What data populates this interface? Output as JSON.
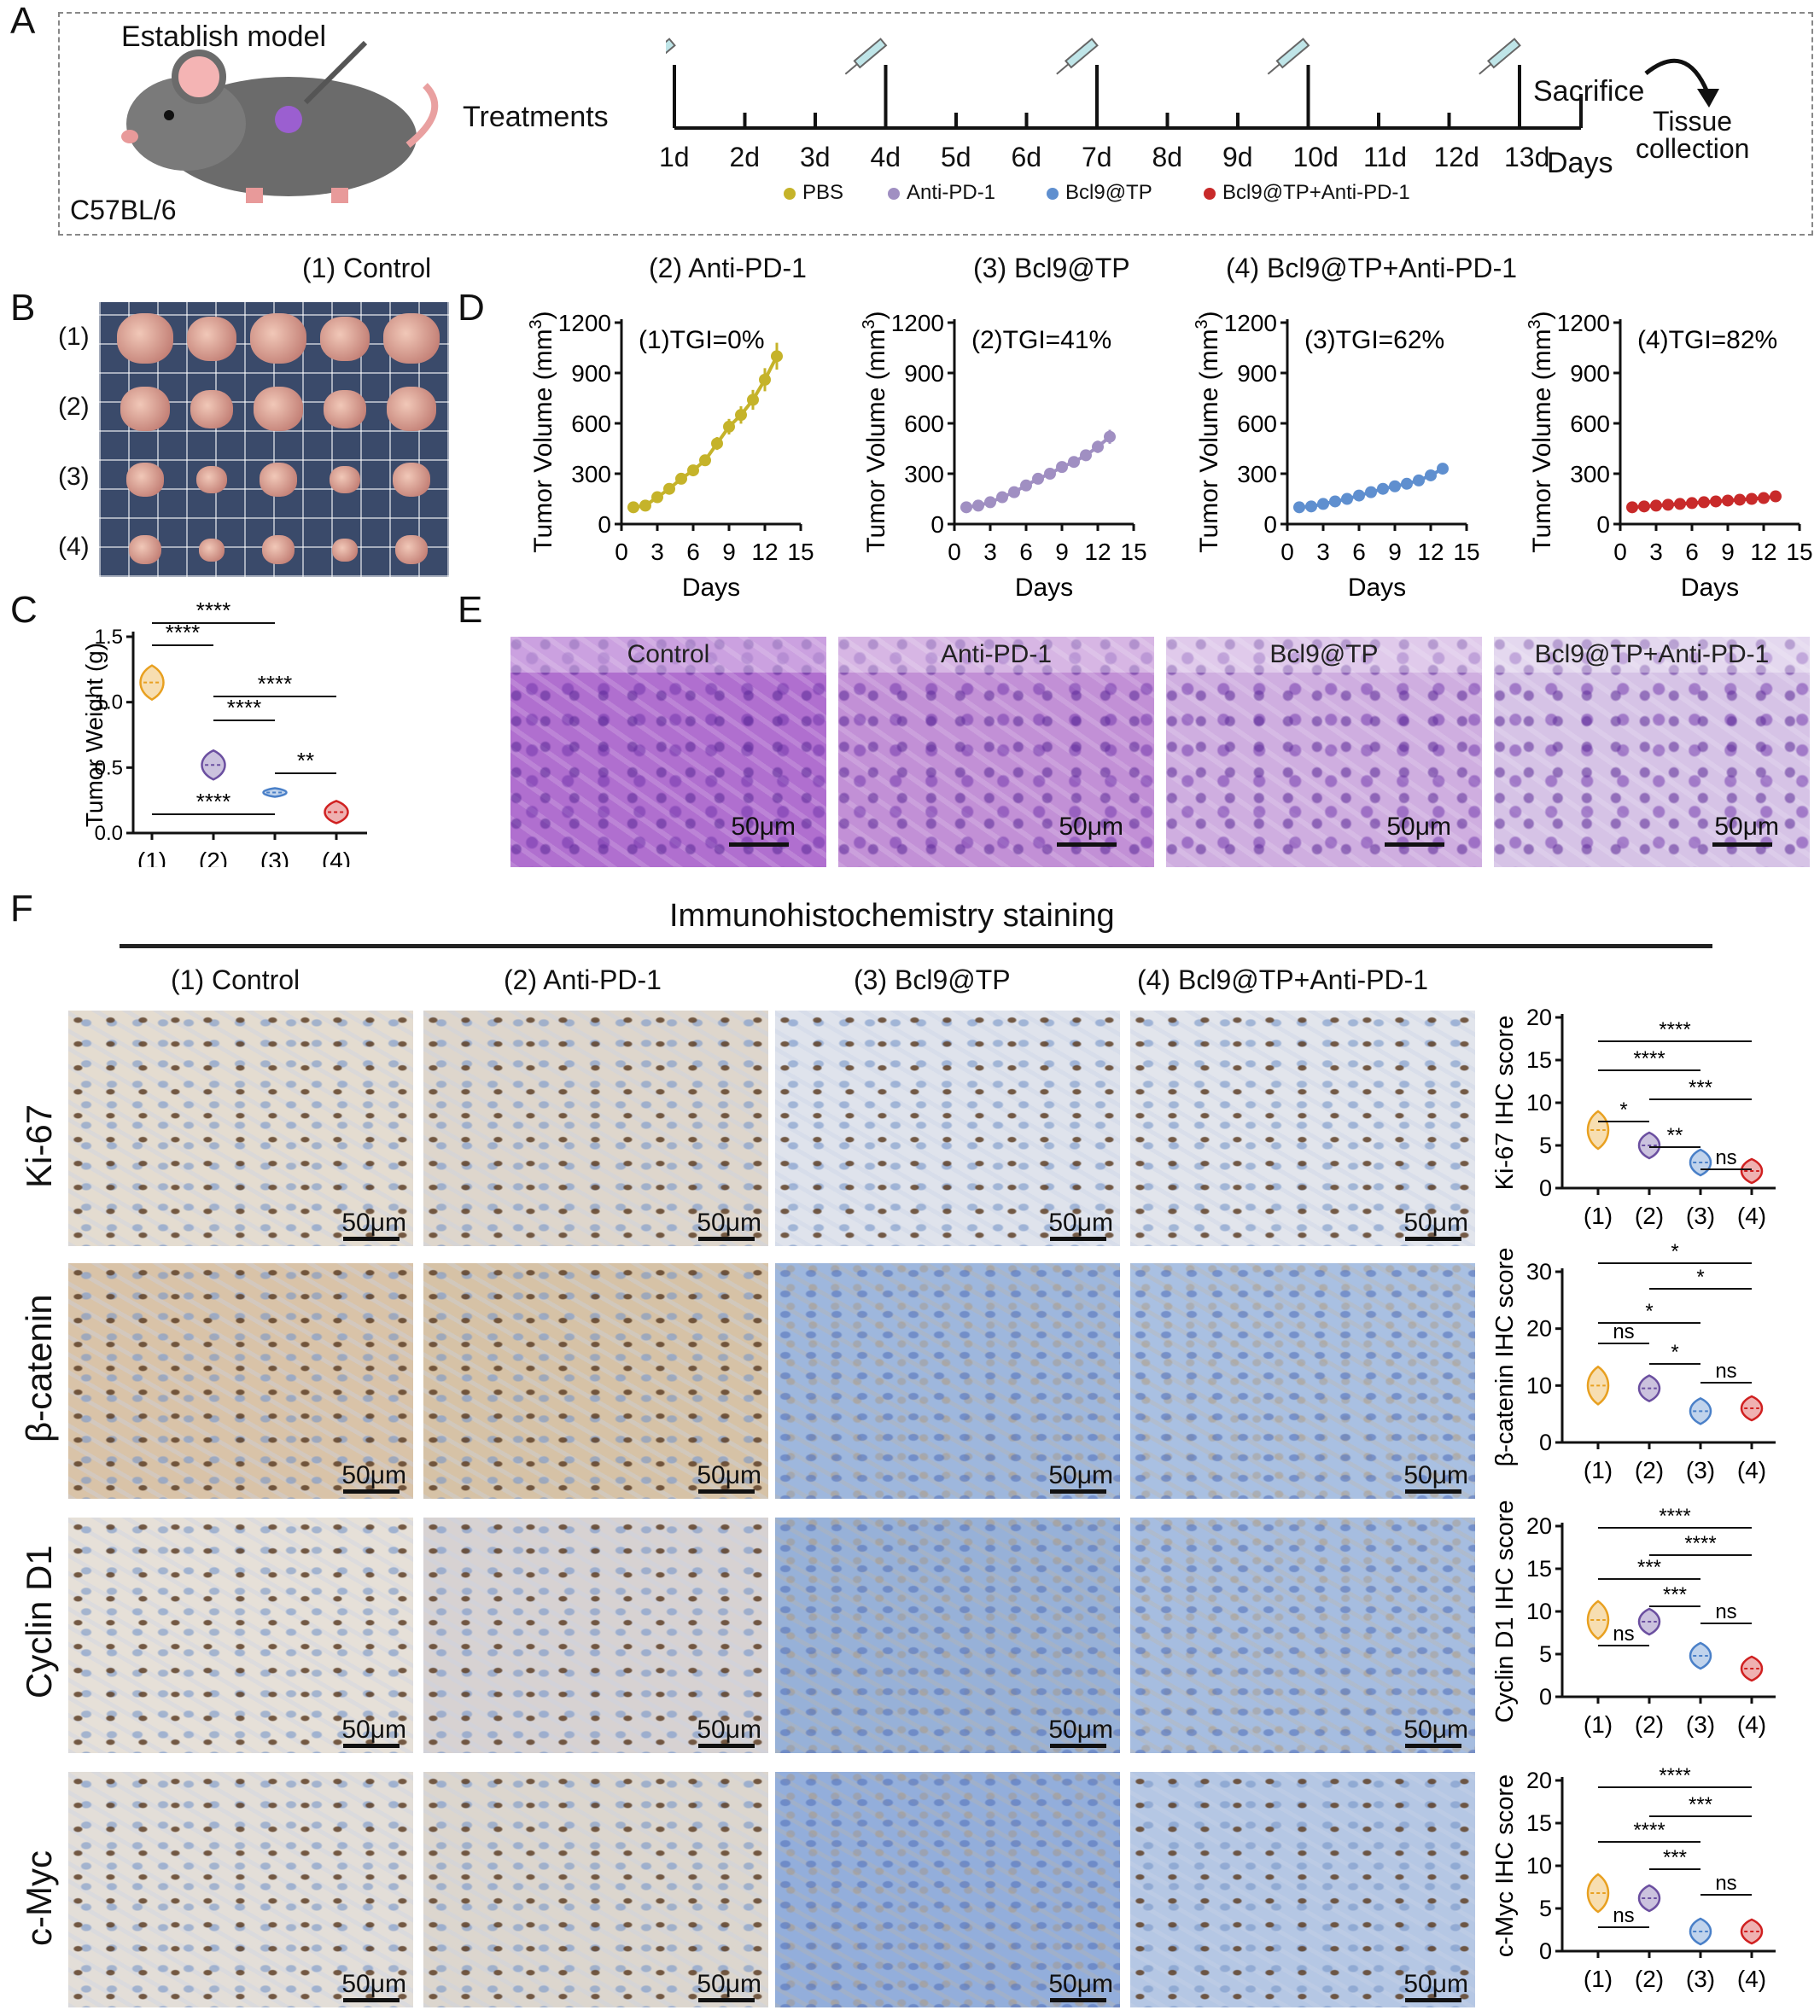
{
  "panels": {
    "A": "A",
    "B": "B",
    "C": "C",
    "D": "D",
    "E": "E",
    "F": "F"
  },
  "A": {
    "establish": "Establish model",
    "strain": "C57BL/6",
    "treatments": "Treatments",
    "days": [
      "1d",
      "2d",
      "3d",
      "4d",
      "5d",
      "6d",
      "7d",
      "8d",
      "9d",
      "10d",
      "11d",
      "12d",
      "13d"
    ],
    "days_label": "Days",
    "sacrifice": "Sacrifice",
    "tissue": [
      "Tissue",
      "collection"
    ],
    "legend": [
      {
        "label": "PBS",
        "color": "#c5b32a"
      },
      {
        "label": "Anti-PD-1",
        "color": "#a08fc2"
      },
      {
        "label": "Bcl9@TP",
        "color": "#5f8fcf"
      },
      {
        "label": "Bcl9@TP+Anti-PD-1",
        "color": "#c82a2a"
      }
    ]
  },
  "group_titles": [
    "(1) Control",
    "(2) Anti-PD-1",
    "(3) Bcl9@TP",
    "(4) Bcl9@TP+Anti-PD-1"
  ],
  "B": {
    "rows": [
      "(1)",
      "(2)",
      "(3)",
      "(4)"
    ]
  },
  "C": {
    "ylabel": "Tumor Weight (g)",
    "yticks": [
      "0.0",
      "0.5",
      "1.0",
      "1.5"
    ],
    "groups": [
      "(1)",
      "(2)",
      "(3)",
      "(4)"
    ],
    "sig": [
      "****",
      "****",
      "****",
      "****",
      "**",
      "****"
    ]
  },
  "D": {
    "ylabel": "Tumor Volume (mm",
    "ylabel_sup": "3",
    "ylabel_close": ")",
    "xlabel": "Days",
    "yticks": [
      "0",
      "300",
      "600",
      "900",
      "1200"
    ],
    "xticks": [
      "0",
      "3",
      "6",
      "9",
      "12",
      "15"
    ],
    "tgi": [
      "(1)TGI=0%",
      "(2)TGI=41%",
      "(3)TGI=62%",
      "(4)TGI=82%"
    ]
  },
  "E": {
    "labels": [
      "Control",
      "Anti-PD-1",
      "Bcl9@TP",
      "Bcl9@TP+Anti-PD-1"
    ],
    "scale": "50μm"
  },
  "F": {
    "title": "Immunohistochemistry staining",
    "columns": [
      "(1) Control",
      "(2) Anti-PD-1",
      "(3) Bcl9@TP",
      "(4) Bcl9@TP+Anti-PD-1"
    ],
    "rows": [
      "Ki-67",
      "β-catenin",
      "Cyclin D1",
      "c-Myc"
    ],
    "scale": "50μm",
    "score_plots": [
      {
        "ylabel": "Ki-67 IHC score",
        "yticks": [
          "0",
          "5",
          "10",
          "15",
          "20"
        ],
        "sig": [
          "****",
          "****",
          "***",
          "*",
          "**",
          "ns"
        ]
      },
      {
        "ylabel": "β-catenin IHC score",
        "yticks": [
          "0",
          "10",
          "20",
          "30"
        ],
        "sig": [
          "*",
          "*",
          "*",
          "ns",
          "*",
          "ns"
        ]
      },
      {
        "ylabel": "Cyclin D1 IHC score",
        "yticks": [
          "0",
          "5",
          "10",
          "15",
          "20"
        ],
        "sig": [
          "****",
          "****",
          "***",
          "***",
          "ns",
          "ns"
        ]
      },
      {
        "ylabel": "c-Myc IHC score",
        "yticks": [
          "0",
          "5",
          "10",
          "15",
          "20"
        ],
        "sig": [
          "****",
          "***",
          "****",
          "***",
          "ns",
          "ns"
        ]
      }
    ],
    "groups": [
      "(1)",
      "(2)",
      "(3)",
      "(4)"
    ]
  },
  "chart_data": [
    {
      "type": "line",
      "title": "(1)TGI=0%",
      "xlabel": "Days",
      "ylabel": "Tumor Volume (mm3)",
      "xlim": [
        0,
        15
      ],
      "ylim": [
        0,
        1200
      ],
      "series": [
        {
          "name": "Control",
          "x": [
            1,
            2,
            3,
            4,
            5,
            6,
            7,
            8,
            9,
            10,
            11,
            12,
            13
          ],
          "values": [
            100,
            110,
            160,
            210,
            270,
            320,
            380,
            480,
            580,
            650,
            740,
            860,
            1000
          ]
        }
      ]
    },
    {
      "type": "line",
      "title": "(2)TGI=41%",
      "xlabel": "Days",
      "ylabel": "Tumor Volume (mm3)",
      "xlim": [
        0,
        15
      ],
      "ylim": [
        0,
        1200
      ],
      "series": [
        {
          "name": "Anti-PD-1",
          "x": [
            1,
            2,
            3,
            4,
            5,
            6,
            7,
            8,
            9,
            10,
            11,
            12,
            13
          ],
          "values": [
            100,
            110,
            130,
            160,
            190,
            230,
            270,
            300,
            340,
            370,
            410,
            460,
            520
          ]
        }
      ]
    },
    {
      "type": "line",
      "title": "(3)TGI=62%",
      "xlabel": "Days",
      "ylabel": "Tumor Volume (mm3)",
      "xlim": [
        0,
        15
      ],
      "ylim": [
        0,
        1200
      ],
      "series": [
        {
          "name": "Bcl9@TP",
          "x": [
            1,
            2,
            3,
            4,
            5,
            6,
            7,
            8,
            9,
            10,
            11,
            12,
            13
          ],
          "values": [
            100,
            105,
            120,
            135,
            150,
            170,
            190,
            210,
            225,
            240,
            260,
            290,
            330
          ]
        }
      ]
    },
    {
      "type": "line",
      "title": "(4)TGI=82%",
      "xlabel": "Days",
      "ylabel": "Tumor Volume (mm3)",
      "xlim": [
        0,
        15
      ],
      "ylim": [
        0,
        1200
      ],
      "series": [
        {
          "name": "Bcl9@TP+Anti-PD-1",
          "x": [
            1,
            2,
            3,
            4,
            5,
            6,
            7,
            8,
            9,
            10,
            11,
            12,
            13
          ],
          "values": [
            100,
            105,
            110,
            115,
            120,
            125,
            130,
            135,
            140,
            145,
            150,
            155,
            165
          ]
        }
      ]
    },
    {
      "type": "violin",
      "title": "",
      "ylabel": "Tumor Weight (g)",
      "ylim": [
        0,
        1.5
      ],
      "categories": [
        "(1)",
        "(2)",
        "(3)",
        "(4)"
      ],
      "values": [
        1.15,
        0.52,
        0.31,
        0.16
      ]
    },
    {
      "type": "violin",
      "ylabel": "Ki-67 IHC score",
      "ylim": [
        0,
        20
      ],
      "categories": [
        "(1)",
        "(2)",
        "(3)",
        "(4)"
      ],
      "values": [
        6.8,
        5.0,
        3.0,
        2.0
      ]
    },
    {
      "type": "violin",
      "ylabel": "β-catenin IHC score",
      "ylim": [
        0,
        30
      ],
      "categories": [
        "(1)",
        "(2)",
        "(3)",
        "(4)"
      ],
      "values": [
        10,
        9.5,
        5.5,
        6.0
      ]
    },
    {
      "type": "violin",
      "ylabel": "Cyclin D1 IHC score",
      "ylim": [
        0,
        20
      ],
      "categories": [
        "(1)",
        "(2)",
        "(3)",
        "(4)"
      ],
      "values": [
        9.0,
        8.8,
        4.8,
        3.3
      ]
    },
    {
      "type": "violin",
      "ylabel": "c-Myc IHC score",
      "ylim": [
        0,
        20
      ],
      "categories": [
        "(1)",
        "(2)",
        "(3)",
        "(4)"
      ],
      "values": [
        6.8,
        6.2,
        2.3,
        2.3
      ]
    }
  ]
}
